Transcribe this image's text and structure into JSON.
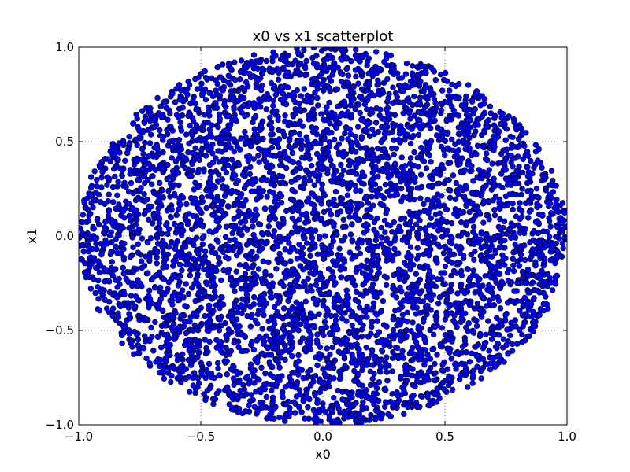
{
  "chart_data": {
    "type": "scatter",
    "title": "x0 vs x1 scatterplot",
    "xlabel": "x0",
    "ylabel": "x1",
    "xlim": [
      -1.0,
      1.0
    ],
    "ylim": [
      -1.0,
      1.0
    ],
    "xticks": [
      -1.0,
      -0.5,
      0.0,
      0.5,
      1.0
    ],
    "yticks": [
      -1.0,
      -0.5,
      0.0,
      0.5,
      1.0
    ],
    "xtick_labels": [
      "−1.0",
      "−0.5",
      "0.0",
      "0.5",
      "1.0"
    ],
    "ytick_labels": [
      "−1.0",
      "−0.5",
      "0.0",
      "0.5",
      "1.0"
    ],
    "grid": true,
    "series": [
      {
        "color": "#0000ff",
        "edge_color": "#000000",
        "distribution": "uniform points filling the unit disk x0^2 + x1^2 <= 1"
      }
    ]
  }
}
